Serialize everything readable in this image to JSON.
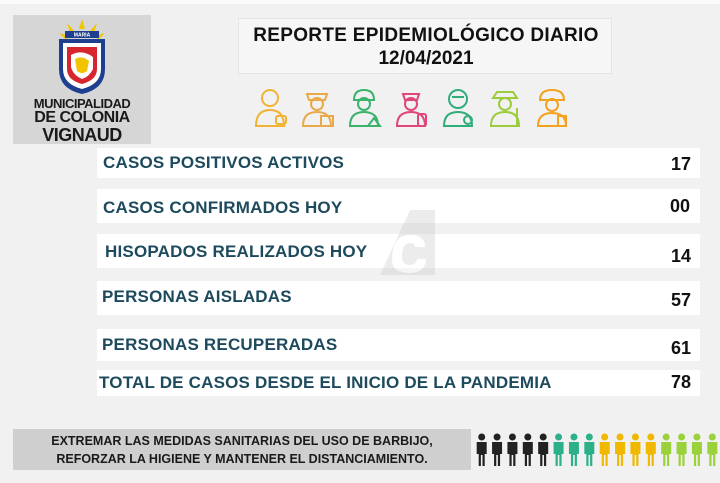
{
  "logo": {
    "banner": "MARIA",
    "line1": "MUNICIPALIDAD",
    "line2": "DE COLONIA",
    "line3": "VIGNAUD"
  },
  "header": {
    "title": "REPORTE EPIDEMIOLÓGICO DIARIO",
    "date": "12/04/2021"
  },
  "worker_icons": [
    {
      "name": "worker-icon",
      "color": "#f2b233"
    },
    {
      "name": "police-icon",
      "color": "#e8a94a"
    },
    {
      "name": "builder-icon",
      "color": "#3ab36b"
    },
    {
      "name": "nurse-icon",
      "color": "#e0457b"
    },
    {
      "name": "doctor-icon",
      "color": "#2fae7c"
    },
    {
      "name": "farmer-icon",
      "color": "#9ccc3c"
    },
    {
      "name": "firefighter-icon",
      "color": "#f3a21f"
    }
  ],
  "stats": [
    {
      "label": "CASOS POSITIVOS ACTIVOS",
      "value": "17"
    },
    {
      "label": "CASOS CONFIRMADOS HOY",
      "value": "00"
    },
    {
      "label": "HISOPADOS REALIZADOS HOY",
      "value": "14"
    },
    {
      "label": "PERSONAS AISLADAS",
      "value": "57"
    },
    {
      "label": "PERSONAS RECUPERADAS",
      "value": "61"
    },
    {
      "label": "TOTAL DE CASOS DESDE EL INICIO DE LA PANDEMIA",
      "value": "78"
    }
  ],
  "footer": {
    "line1": "EXTREMAR LAS MEDIDAS SANITARIAS DEL USO DE BARBIJO,",
    "line2": "REFORZAR LA HIGIENE Y MANTENER EL DISTANCIAMIENTO."
  },
  "people_colors": [
    "#222222",
    "#222222",
    "#222222",
    "#222222",
    "#222222",
    "#2bb08a",
    "#2bb08a",
    "#2bb08a",
    "#f0b800",
    "#f0b800",
    "#f0b800",
    "#f0b800",
    "#9bd13a",
    "#9bd13a",
    "#9bd13a",
    "#9bd13a"
  ],
  "colors": {
    "label_text": "#1d4a5c",
    "row_bg": "#ffffff",
    "page_bg": "#f1f1f1",
    "logo_bg": "#d6d6d6",
    "footer_bg": "#cfcfcf"
  }
}
